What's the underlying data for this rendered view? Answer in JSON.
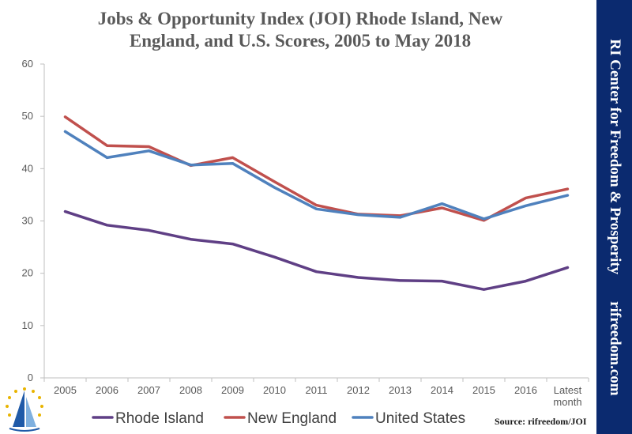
{
  "chart_data": {
    "type": "line",
    "title_lines": [
      "Jobs & Opportunity Index (JOI) Rhode Island, New",
      "England, and U.S. Scores, 2005 to May 2018"
    ],
    "categories": [
      "2005",
      "2006",
      "2007",
      "2008",
      "2009",
      "2010",
      "2011",
      "2012",
      "2013",
      "2014",
      "2015",
      "2016",
      "Latest month"
    ],
    "ylim": [
      0,
      60
    ],
    "yticks": [
      0,
      10,
      20,
      30,
      40,
      50,
      60
    ],
    "grid": false,
    "legend_position": "bottom",
    "series": [
      {
        "name": "Rhode Island",
        "color": "#5f3f85",
        "values": [
          31.8,
          29.2,
          28.2,
          26.5,
          25.6,
          23.1,
          20.3,
          19.2,
          18.6,
          18.5,
          16.9,
          18.5,
          21.1
        ]
      },
      {
        "name": "New England",
        "color": "#c0504d",
        "values": [
          49.9,
          44.4,
          44.2,
          40.6,
          42.1,
          37.5,
          33.0,
          31.3,
          31.0,
          32.5,
          30.1,
          34.4,
          36.1
        ]
      },
      {
        "name": "United States",
        "color": "#4f81bd",
        "values": [
          47.1,
          42.1,
          43.4,
          40.7,
          41.0,
          36.4,
          32.3,
          31.2,
          30.7,
          33.3,
          30.4,
          32.9,
          34.9
        ]
      }
    ]
  },
  "source": "Source: rifreedom/JOI",
  "brand": {
    "name": "RI Center for Freedom & Prosperity",
    "url": "rifreedom.com",
    "background_color": "#0b2a6f"
  }
}
